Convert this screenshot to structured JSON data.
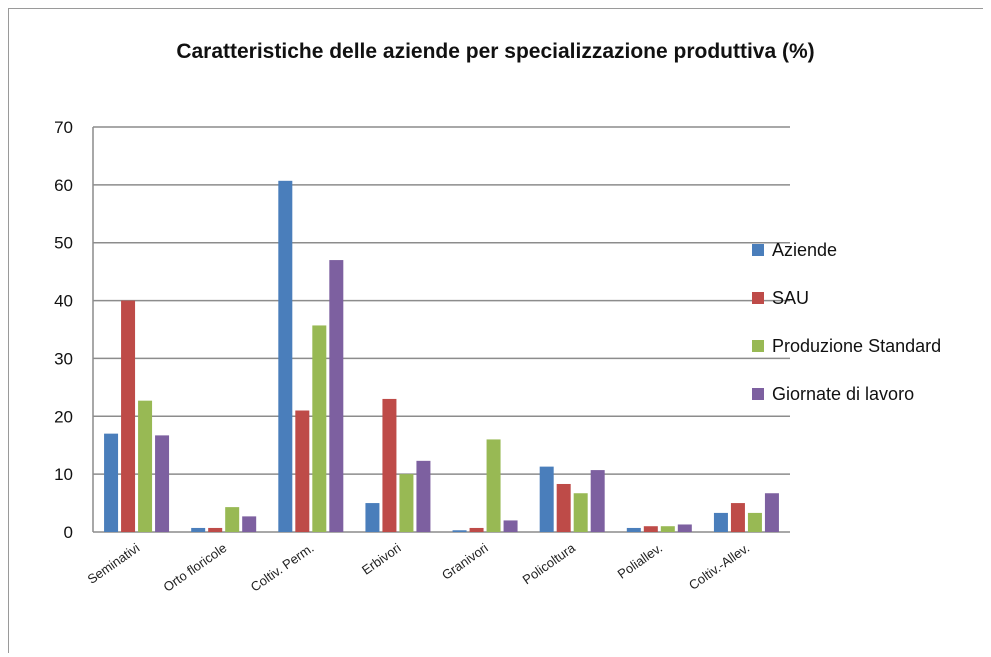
{
  "chart_data": {
    "type": "bar",
    "title": "Caratteristiche delle aziende per specializzazione produttiva (%)",
    "categories": [
      "Seminativi",
      "Orto floricole",
      "Coltiv. Perm.",
      "Erbivori",
      "Granivori",
      "Policoltura",
      "Poliallev.",
      "Coltiv.-Allev."
    ],
    "series": [
      {
        "name": "Aziende",
        "color": "#4a7ebb",
        "values": [
          17,
          0.7,
          60.7,
          5,
          0.3,
          11.3,
          0.7,
          3.3
        ]
      },
      {
        "name": "SAU",
        "color": "#be4b48",
        "values": [
          40,
          0.7,
          21,
          23,
          0.7,
          8.3,
          1,
          5
        ]
      },
      {
        "name": "Produzione Standard",
        "color": "#98b954",
        "values": [
          22.7,
          4.3,
          35.7,
          10,
          16,
          6.7,
          1,
          3.3
        ]
      },
      {
        "name": "Giornate di lavoro",
        "color": "#7d60a0",
        "values": [
          16.7,
          2.7,
          47,
          12.3,
          2,
          10.7,
          1.3,
          6.7
        ]
      }
    ],
    "ylim": [
      0,
      70
    ],
    "yticks": [
      "0",
      "10",
      "20",
      "30",
      "40",
      "50",
      "60",
      "70"
    ],
    "grid": true,
    "legend_position": "right"
  }
}
